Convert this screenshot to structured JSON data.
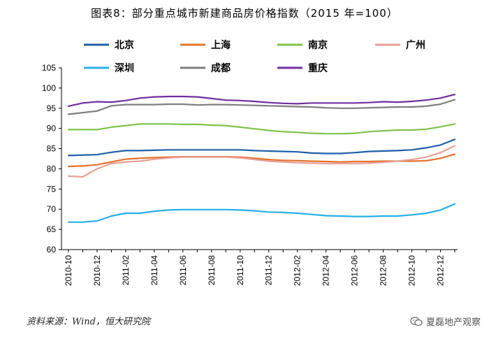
{
  "title": "图表8：部分重点城市新建商品房价格指数（2015 年=100）",
  "source": "资料来源：Wind，恒大研究院",
  "watermark": "夏磊地产观察",
  "chart_data": {
    "type": "line",
    "title": "图表8：部分重点城市新建商品房价格指数（2015 年=100）",
    "xlabel": "",
    "ylabel": "",
    "ylim": [
      60,
      105
    ],
    "yticks": [
      60,
      65,
      70,
      75,
      80,
      85,
      90,
      95,
      100,
      105
    ],
    "grid": false,
    "legend_position": "top",
    "x": [
      "2010-10",
      "2010-11",
      "2010-12",
      "2011-01",
      "2011-02",
      "2011-03",
      "2011-04",
      "2011-05",
      "2011-06",
      "2011-07",
      "2011-08",
      "2011-09",
      "2011-10",
      "2011-11",
      "2011-12",
      "2012-01",
      "2012-02",
      "2012-03",
      "2012-04",
      "2012-05",
      "2012-06",
      "2012-07",
      "2012-08",
      "2012-09",
      "2012-10",
      "2012-11",
      "2012-12",
      "2013-01"
    ],
    "x_tick_labels": [
      "2010-10",
      "2010-12",
      "2011-02",
      "2011-04",
      "2011-06",
      "2011-08",
      "2011-10",
      "2011-12",
      "2012-02",
      "2012-04",
      "2012-06",
      "2012-08",
      "2012-10",
      "2012-12"
    ],
    "series": [
      {
        "name": "北京",
        "color": "#1f5fa8",
        "values": [
          83.3,
          83.4,
          83.5,
          84.1,
          84.5,
          84.5,
          84.6,
          84.7,
          84.7,
          84.7,
          84.7,
          84.7,
          84.7,
          84.5,
          84.4,
          84.3,
          84.2,
          83.9,
          83.8,
          83.8,
          84.0,
          84.3,
          84.4,
          84.5,
          84.7,
          85.2,
          85.9,
          87.3
        ]
      },
      {
        "name": "上海",
        "color": "#e2742e",
        "values": [
          80.6,
          80.7,
          81.0,
          81.7,
          82.4,
          82.6,
          82.8,
          82.9,
          83.0,
          83.0,
          83.0,
          83.0,
          82.9,
          82.6,
          82.3,
          82.1,
          82.0,
          81.9,
          81.8,
          81.7,
          81.8,
          81.8,
          81.9,
          81.9,
          81.9,
          82.0,
          82.6,
          83.6
        ]
      },
      {
        "name": "南京",
        "color": "#7fc34c",
        "values": [
          89.7,
          89.7,
          89.7,
          90.3,
          90.7,
          91.1,
          91.1,
          91.1,
          91.0,
          91.0,
          90.8,
          90.7,
          90.3,
          89.9,
          89.5,
          89.2,
          89.0,
          88.8,
          88.7,
          88.7,
          88.8,
          89.2,
          89.4,
          89.6,
          89.6,
          89.8,
          90.4,
          91.1
        ]
      },
      {
        "name": "广州",
        "color": "#e8a098",
        "values": [
          78.2,
          78.0,
          80.0,
          81.3,
          81.7,
          81.9,
          82.4,
          82.7,
          82.9,
          82.9,
          82.9,
          82.9,
          82.7,
          82.3,
          81.9,
          81.7,
          81.5,
          81.4,
          81.3,
          81.3,
          81.3,
          81.4,
          81.6,
          81.9,
          82.3,
          82.9,
          84.0,
          85.7
        ]
      },
      {
        "name": "深圳",
        "color": "#27b0e6",
        "values": [
          66.8,
          66.8,
          67.1,
          68.3,
          69.0,
          69.0,
          69.5,
          69.8,
          69.9,
          69.9,
          69.9,
          69.9,
          69.8,
          69.6,
          69.3,
          69.2,
          69.0,
          68.7,
          68.4,
          68.3,
          68.2,
          68.2,
          68.3,
          68.3,
          68.6,
          69.0,
          69.8,
          71.3
        ]
      },
      {
        "name": "成都",
        "color": "#7f7f7f",
        "values": [
          93.5,
          93.9,
          94.3,
          95.6,
          95.9,
          95.9,
          95.9,
          96.0,
          96.0,
          95.8,
          95.9,
          95.9,
          95.8,
          95.7,
          95.6,
          95.5,
          95.4,
          95.3,
          95.1,
          95.0,
          95.0,
          95.1,
          95.2,
          95.3,
          95.3,
          95.5,
          96.0,
          97.1
        ]
      },
      {
        "name": "重庆",
        "color": "#7030a0",
        "values": [
          95.5,
          96.3,
          96.6,
          96.5,
          96.9,
          97.5,
          97.8,
          97.9,
          97.9,
          97.8,
          97.4,
          97.0,
          96.9,
          96.7,
          96.4,
          96.2,
          96.1,
          96.3,
          96.3,
          96.3,
          96.3,
          96.4,
          96.6,
          96.5,
          96.7,
          97.0,
          97.5,
          98.4
        ]
      }
    ]
  }
}
